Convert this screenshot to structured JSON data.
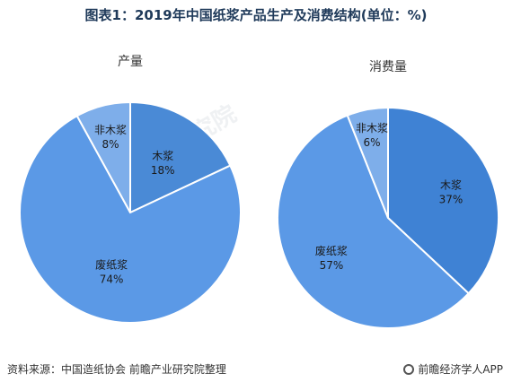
{
  "title": "图表1：2019年中国纸浆产品生产及消费结构(单位：%)",
  "watermark": "前瞻产业研究院",
  "chart_data": [
    {
      "type": "pie",
      "title": "产量",
      "slices": [
        {
          "label": "木浆",
          "value": 18,
          "display": "18%",
          "color": "#4a8ad6"
        },
        {
          "label": "废纸浆",
          "value": 74,
          "display": "74%",
          "color": "#5b99e6"
        },
        {
          "label": "非木浆",
          "value": 8,
          "display": "8%",
          "color": "#7eaeea"
        }
      ]
    },
    {
      "type": "pie",
      "title": "消费量",
      "slices": [
        {
          "label": "木浆",
          "value": 37,
          "display": "37%",
          "color": "#3f82d4"
        },
        {
          "label": "废纸浆",
          "value": 57,
          "display": "57%",
          "color": "#5b99e6"
        },
        {
          "label": "非木浆",
          "value": 6,
          "display": "6%",
          "color": "#7eaeea"
        }
      ]
    }
  ],
  "footer": {
    "source": "资料来源：中国造纸协会 前瞻产业研究院整理",
    "brand": "前瞻经济学人APP"
  }
}
